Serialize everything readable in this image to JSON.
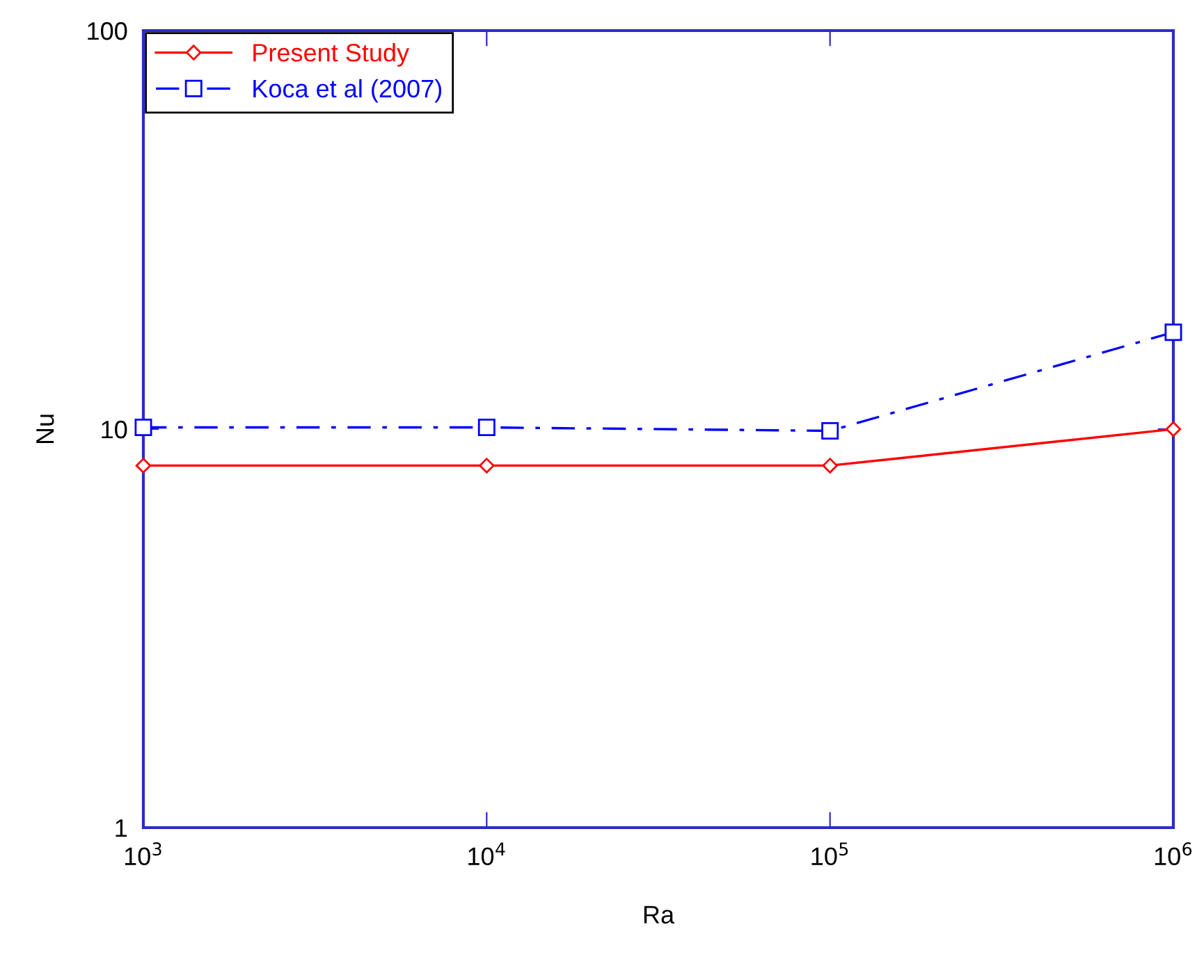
{
  "chart_data": {
    "type": "line",
    "xlabel": "Ra",
    "ylabel": "Nu",
    "log": "xy",
    "x": [
      1000,
      10000,
      100000,
      1000000
    ],
    "xlim": [
      1000,
      1000000
    ],
    "ylim": [
      1,
      100
    ],
    "xticks": [
      {
        "value": 1000,
        "label": "10$^{3}$"
      },
      {
        "value": 10000,
        "label": "10$^{4}$"
      },
      {
        "value": 100000,
        "label": "10$^{5}$"
      },
      {
        "value": 1000000,
        "label": "10$^{6}$"
      }
    ],
    "yticks": [
      1,
      10,
      100
    ],
    "grid": false,
    "legend": "top left",
    "series": [
      {
        "name": "Present Study",
        "color": "#ff0000",
        "values": [
          8.1,
          8.1,
          8.1,
          10.0
        ],
        "marker": "diamond",
        "line_style": "solid"
      },
      {
        "name": "Koca et al (2007)",
        "color": "#0000ff",
        "values": [
          10.1,
          10.1,
          9.9,
          17.5
        ],
        "marker": "square",
        "line_style": "dashdot"
      }
    ]
  }
}
